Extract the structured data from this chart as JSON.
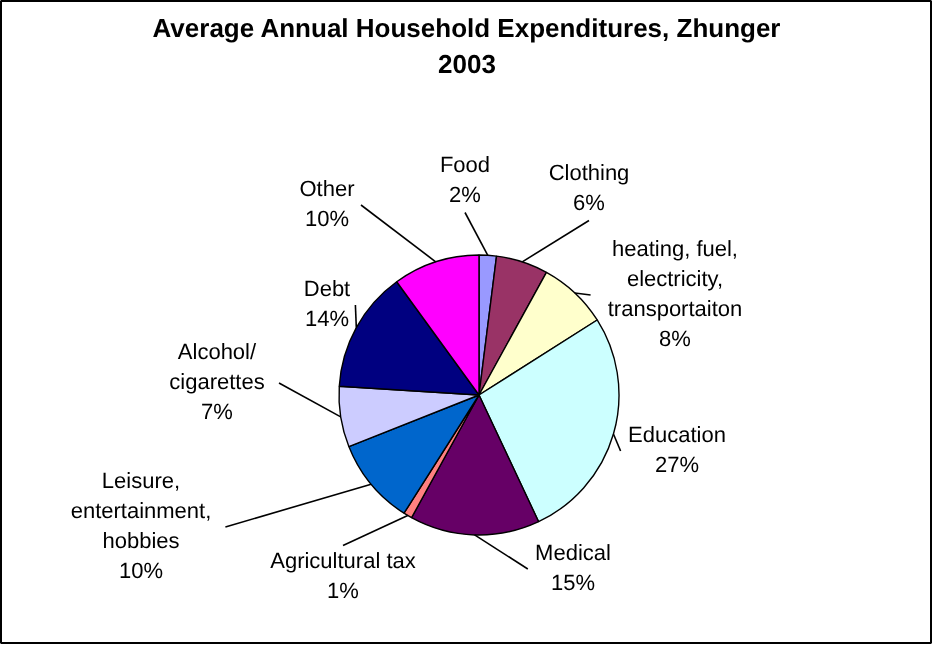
{
  "chart_data": {
    "type": "pie",
    "title": "Average Annual Household Expenditures, Zhunger\n2003",
    "categories": [
      "Food",
      "Clothing",
      "heating, fuel,\nelectricity,\ntransportaiton",
      "Education",
      "Medical",
      "Agricultural tax",
      "Leisure,\nentertainment,\nhobbies",
      "Alcohol/\ncigarettes",
      "Debt",
      "Other"
    ],
    "values": [
      2,
      6,
      8,
      27,
      15,
      1,
      10,
      7,
      14,
      10
    ],
    "colors": [
      "#9999ff",
      "#993366",
      "#ffffcc",
      "#ccffff",
      "#660066",
      "#ff8080",
      "#0066cc",
      "#ccccff",
      "#000080",
      "#ff00ff"
    ],
    "value_labels": [
      "2%",
      "6%",
      "8%",
      "27%",
      "15%",
      "1%",
      "10%",
      "7%",
      "14%",
      "10%"
    ]
  }
}
